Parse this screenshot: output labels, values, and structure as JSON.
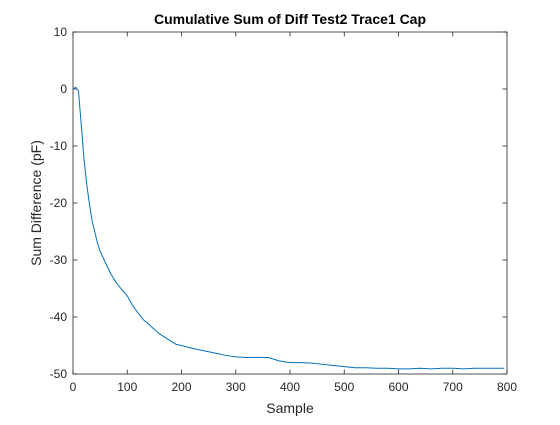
{
  "chart_data": {
    "type": "line",
    "title": "Cumulative Sum of Diff Test2 Trace1 Cap",
    "xlabel": "Sample",
    "ylabel": "Sum Difference (pF)",
    "xlim": [
      0,
      800
    ],
    "ylim": [
      -50,
      10
    ],
    "xticks": [
      "0",
      "100",
      "200",
      "300",
      "400",
      "500",
      "600",
      "700",
      "800"
    ],
    "yticks": [
      "10",
      "0",
      "-10",
      "-20",
      "-30",
      "-40",
      "-50"
    ],
    "grid": false,
    "series": [
      {
        "color": "#0072BD",
        "x": [
          0,
          5,
          10,
          15,
          20,
          25,
          30,
          35,
          40,
          45,
          50,
          55,
          60,
          70,
          80,
          90,
          100,
          110,
          120,
          130,
          140,
          150,
          160,
          170,
          180,
          190,
          200,
          220,
          240,
          260,
          280,
          300,
          320,
          340,
          360,
          380,
          400,
          420,
          440,
          460,
          480,
          500,
          520,
          540,
          560,
          580,
          600,
          620,
          640,
          660,
          680,
          700,
          720,
          740,
          760,
          780,
          795
        ],
        "y": [
          0,
          0.3,
          -0.3,
          -6,
          -12,
          -16.5,
          -20,
          -23,
          -25,
          -27,
          -28.5,
          -29.5,
          -30.5,
          -32.5,
          -34,
          -35.2,
          -36.3,
          -38,
          -39.3,
          -40.5,
          -41.3,
          -42.2,
          -43,
          -43.6,
          -44.2,
          -44.8,
          -45,
          -45.5,
          -45.9,
          -46.3,
          -46.7,
          -47,
          -47.1,
          -47.1,
          -47.1,
          -47.7,
          -48,
          -48,
          -48.1,
          -48.3,
          -48.5,
          -48.7,
          -48.9,
          -48.9,
          -49,
          -49,
          -49.1,
          -49.1,
          -49,
          -49.1,
          -49,
          -49,
          -49.1,
          -49,
          -49,
          -49,
          -49
        ]
      }
    ]
  }
}
